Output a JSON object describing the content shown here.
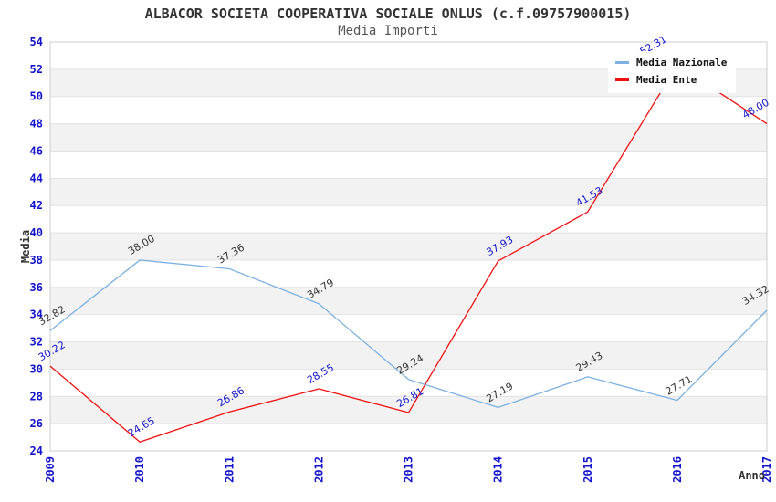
{
  "page": {
    "title": "ALBACOR SOCIETA COOPERATIVA SOCIALE ONLUS (c.f.09757900015)",
    "subtitle": "Media Importi"
  },
  "legend": {
    "position": "top-right",
    "items": [
      {
        "label": "Media Nazionale",
        "color": "#7cb0e2"
      },
      {
        "label": "Media Ente",
        "color": "#ee1111"
      }
    ]
  },
  "chart_data": {
    "type": "line",
    "x": [
      "2009",
      "2010",
      "2011",
      "2012",
      "2013",
      "2014",
      "2015",
      "2016",
      "2017"
    ],
    "xlabel": "Anno",
    "ylabel": "Media",
    "ylim": [
      24,
      54
    ],
    "ytick_step": 2,
    "grid": "horizontal gridlines with alternating gray bands",
    "legend_position": "top-right",
    "series": [
      {
        "name": "Media Nazionale",
        "color": "#7cb0e2",
        "label_color": "#333333",
        "values": [
          32.82,
          38.0,
          37.36,
          34.79,
          29.24,
          27.19,
          29.43,
          27.71,
          34.32
        ]
      },
      {
        "name": "Media Ente",
        "color": "#ee1111",
        "label_color": "#1414cc",
        "values": [
          30.22,
          24.65,
          26.86,
          28.55,
          26.81,
          37.93,
          41.53,
          52.31,
          48.0
        ]
      }
    ]
  },
  "colors": {
    "tick_label": "#1414cc",
    "band": "#f2f2f2",
    "gridline": "#e2e2e2",
    "plot_border": "#cccccc",
    "title": "#333333",
    "subtitle": "#555555",
    "background": "#ffffff"
  }
}
